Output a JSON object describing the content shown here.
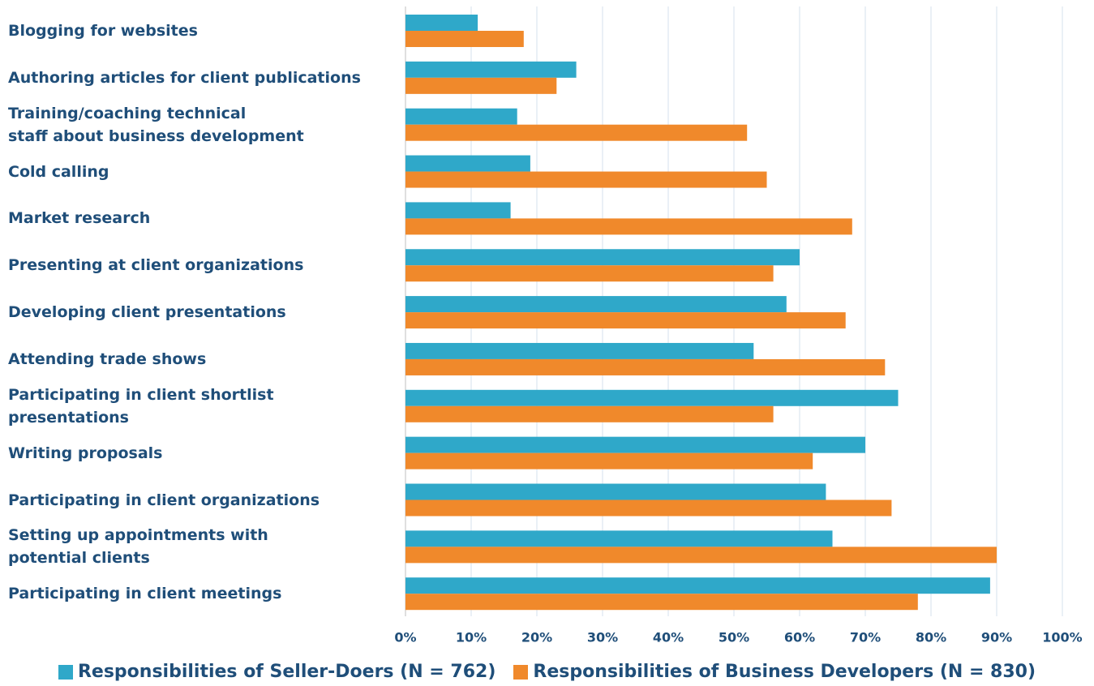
{
  "chart_data": {
    "type": "hbar",
    "categories": [
      "Blogging for websites",
      "Authoring articles for client publications",
      "Training/coaching technical\nstaff about business development",
      "Cold calling",
      "Market research",
      "Presenting at client organizations",
      "Developing client presentations",
      "Attending trade shows",
      "Participating in client shortlist\npresentations",
      "Writing proposals",
      "Participating in client organizations",
      "Setting up appointments with\npotential clients",
      "Participating in client meetings"
    ],
    "series": [
      {
        "name": "Responsibilities of Seller-Doers (N = 762)",
        "color": "#2fa8c9",
        "values": [
          11,
          26,
          17,
          19,
          16,
          60,
          58,
          53,
          75,
          70,
          64,
          65,
          89
        ]
      },
      {
        "name": "Responsibilities of Business Developers (N = 830)",
        "color": "#f0892b",
        "values": [
          18,
          23,
          52,
          55,
          68,
          56,
          67,
          73,
          56,
          62,
          74,
          90,
          78
        ]
      }
    ],
    "xlim": [
      0,
      100
    ],
    "xticks": [
      {
        "value": 0,
        "label": "0%"
      },
      {
        "value": 10,
        "label": "10%"
      },
      {
        "value": 20,
        "label": "20%"
      },
      {
        "value": 30,
        "label": "30%"
      },
      {
        "value": 40,
        "label": "40%"
      },
      {
        "value": 50,
        "label": "50%"
      },
      {
        "value": 60,
        "label": "60%"
      },
      {
        "value": 70,
        "label": "70%"
      },
      {
        "value": 80,
        "label": "80%"
      },
      {
        "value": 90,
        "label": "90%"
      },
      {
        "value": 100,
        "label": "100%"
      }
    ],
    "grid": true,
    "legend": "bottom"
  }
}
